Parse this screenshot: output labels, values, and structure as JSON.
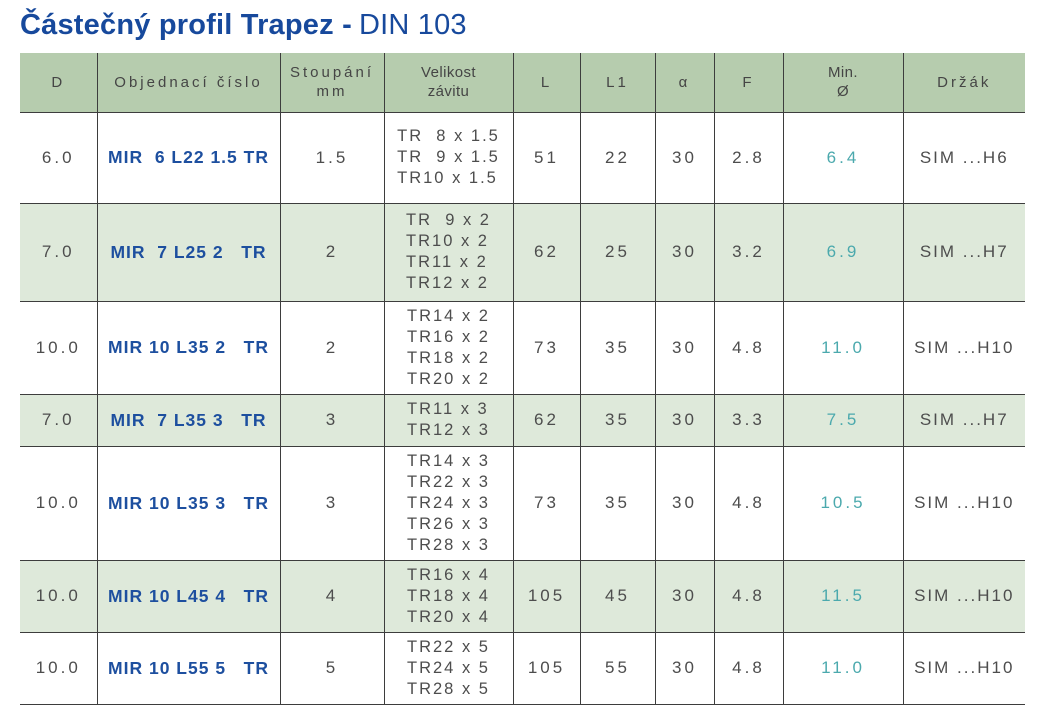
{
  "title": {
    "main": "Částečný profil Trapez -",
    "suffix": "DIN 103"
  },
  "colors": {
    "title_blue": "#17499c",
    "order_blue": "#1d4f9f",
    "min_diameter_teal": "#4ba9ad",
    "header_green": "#b6ccae",
    "row_green": "#dee9da",
    "text_gray": "#4d4d4d",
    "grid_line": "#3d3d3d"
  },
  "table": {
    "header": [
      {
        "id": "d",
        "lines": [
          "D"
        ]
      },
      {
        "id": "order",
        "lines": [
          "Objednací číslo"
        ]
      },
      {
        "id": "pitch",
        "lines": [
          "Stoupání",
          "mm"
        ]
      },
      {
        "id": "sizes",
        "lines": [
          "Velikost",
          "závitu"
        ]
      },
      {
        "id": "l",
        "lines": [
          "L"
        ]
      },
      {
        "id": "l1",
        "lines": [
          "L1"
        ]
      },
      {
        "id": "alpha",
        "lines": [
          "α"
        ]
      },
      {
        "id": "f",
        "lines": [
          "F"
        ]
      },
      {
        "id": "min",
        "lines": [
          "Min.",
          "Ø"
        ]
      },
      {
        "id": "holder",
        "lines": [
          "Držák"
        ]
      }
    ],
    "rows": [
      {
        "d": "6.0",
        "order": "MIR  6 L22 1.5 TR",
        "pitch": "1.5",
        "sizes": [
          "TR  8 x 1.5",
          "TR  9 x 1.5",
          "TR10 x 1.5"
        ],
        "l": "51",
        "l1": "22",
        "alpha": "30",
        "f": "2.8",
        "min_diameter": "6.4",
        "holder": "SIM ...H6"
      },
      {
        "d": "7.0",
        "order": "MIR  7 L25 2   TR",
        "pitch": "2",
        "sizes": [
          "TR  9 x 2",
          "TR10 x 2",
          "TR11 x 2",
          "TR12 x 2"
        ],
        "l": "62",
        "l1": "25",
        "alpha": "30",
        "f": "3.2",
        "min_diameter": "6.9",
        "holder": "SIM ...H7"
      },
      {
        "d": "10.0",
        "order": "MIR 10 L35 2   TR",
        "pitch": "2",
        "sizes": [
          "TR14 x 2",
          "TR16 x 2",
          "TR18 x 2",
          "TR20 x 2"
        ],
        "l": "73",
        "l1": "35",
        "alpha": "30",
        "f": "4.8",
        "min_diameter": "11.0",
        "holder": "SIM ...H10"
      },
      {
        "d": "7.0",
        "order": "MIR  7 L35 3   TR",
        "pitch": "3",
        "sizes": [
          "TR11 x 3",
          "TR12 x 3"
        ],
        "l": "62",
        "l1": "35",
        "alpha": "30",
        "f": "3.3",
        "min_diameter": "7.5",
        "holder": "SIM ...H7"
      },
      {
        "d": "10.0",
        "order": "MIR 10 L35 3   TR",
        "pitch": "3",
        "sizes": [
          "TR14 x 3",
          "TR22 x 3",
          "TR24 x 3",
          "TR26 x 3",
          "TR28 x 3"
        ],
        "l": "73",
        "l1": "35",
        "alpha": "30",
        "f": "4.8",
        "min_diameter": "10.5",
        "holder": "SIM ...H10"
      },
      {
        "d": "10.0",
        "order": "MIR 10 L45 4   TR",
        "pitch": "4",
        "sizes": [
          "TR16 x 4",
          "TR18 x 4",
          "TR20 x 4"
        ],
        "l": "105",
        "l1": "45",
        "alpha": "30",
        "f": "4.8",
        "min_diameter": "11.5",
        "holder": "SIM ...H10"
      },
      {
        "d": "10.0",
        "order": "MIR 10 L55 5   TR",
        "pitch": "5",
        "sizes": [
          "TR22 x 5",
          "TR24 x 5",
          "TR28 x 5"
        ],
        "l": "105",
        "l1": "55",
        "alpha": "30",
        "f": "4.8",
        "min_diameter": "11.0",
        "holder": "SIM ...H10"
      }
    ]
  }
}
